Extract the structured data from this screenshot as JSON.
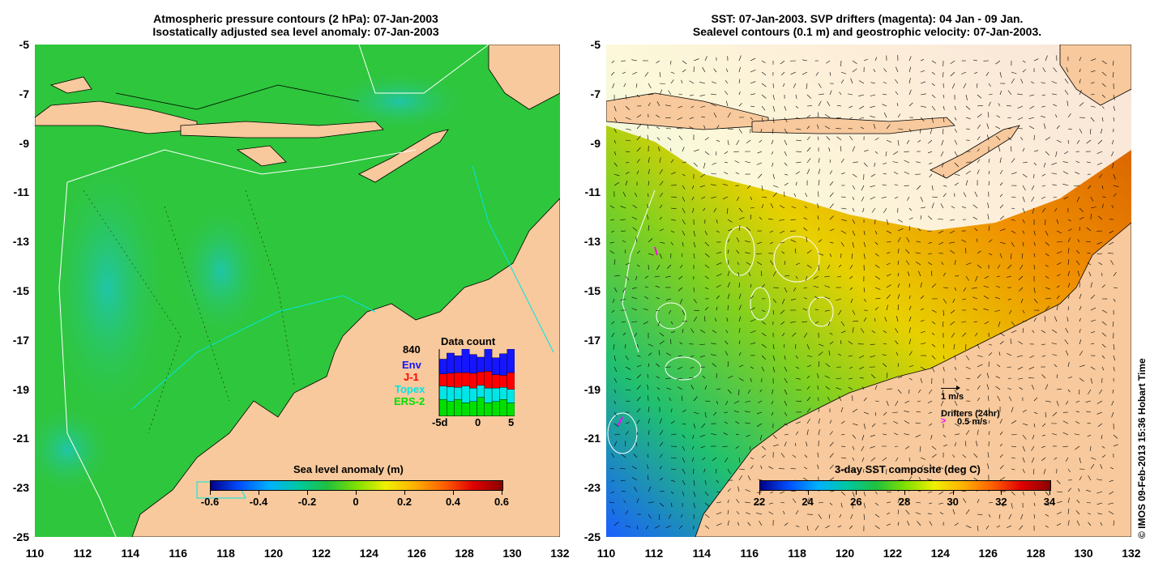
{
  "colors": {
    "land": "#f7c99c",
    "sla_ocean": "#34c63a",
    "sla_ocean_alt": "#22b872",
    "env": "#1515ff",
    "j1": "#ff0000",
    "topex": "#00e5e5",
    "ers2": "#00e000",
    "drifter": "#ff00ff"
  },
  "left_panel": {
    "title_line1": "Atmospheric pressure contours (2 hPa): 07-Jan-2003",
    "title_line2": "Isostatically adjusted sea level anomaly: 07-Jan-2003",
    "colorbar": {
      "title": "Sea level anomaly (m)",
      "ticks": [
        "-0.6",
        "-0.4",
        "-0.2",
        "0",
        "0.2",
        "0.4",
        "0.6"
      ]
    },
    "data_count": {
      "title": "Data count",
      "max_label": "840",
      "legend": [
        {
          "name": "Env",
          "color": "#1515ff"
        },
        {
          "name": "J-1",
          "color": "#ff0000"
        },
        {
          "name": "Topex",
          "color": "#00e5e5"
        },
        {
          "name": "ERS-2",
          "color": "#00e000"
        }
      ],
      "axis_labels": [
        "-5d",
        "0",
        "5"
      ],
      "bars": [
        {
          "ers2": 0.25,
          "topex": 0.2,
          "j1": 0.18,
          "env": 0.22
        },
        {
          "ers2": 0.22,
          "topex": 0.22,
          "j1": 0.2,
          "env": 0.3
        },
        {
          "ers2": 0.25,
          "topex": 0.18,
          "j1": 0.22,
          "env": 0.25
        },
        {
          "ers2": 0.2,
          "topex": 0.25,
          "j1": 0.2,
          "env": 0.35
        },
        {
          "ers2": 0.22,
          "topex": 0.2,
          "j1": 0.22,
          "env": 0.28
        },
        {
          "ers2": 0.28,
          "topex": 0.18,
          "j1": 0.2,
          "env": 0.22
        },
        {
          "ers2": 0.2,
          "topex": 0.22,
          "j1": 0.25,
          "env": 0.4
        },
        {
          "ers2": 0.22,
          "topex": 0.2,
          "j1": 0.2,
          "env": 0.25
        },
        {
          "ers2": 0.25,
          "topex": 0.18,
          "j1": 0.18,
          "env": 0.32
        },
        {
          "ers2": 0.2,
          "topex": 0.2,
          "j1": 0.25,
          "env": 0.35
        }
      ]
    }
  },
  "right_panel": {
    "title_line1": "SST: 07-Jan-2003. SVP drifters (magenta): 04 Jan - 09 Jan.",
    "title_line2": "Sealevel contours (0.1 m) and geostrophic velocity: 07-Jan-2003.",
    "colorbar": {
      "title": "3-day SST composite (deg C)",
      "ticks": [
        "22",
        "24",
        "26",
        "28",
        "30",
        "32",
        "34"
      ]
    },
    "scale_label": "1 m/s",
    "drifter_label": "Drifters (24hr)",
    "drifter_scale_symbol": ">",
    "drifter_scale": "0.5 m/s"
  },
  "y_ticks": [
    "-5",
    "-7",
    "-9",
    "-11",
    "-13",
    "-15",
    "-17",
    "-19",
    "-21",
    "-23",
    "-25"
  ],
  "x_ticks": [
    "110",
    "112",
    "114",
    "116",
    "118",
    "120",
    "122",
    "124",
    "126",
    "128",
    "130",
    "132"
  ],
  "credit": "© IMOS 09-Feb-2013 15:36 Hobart Time"
}
